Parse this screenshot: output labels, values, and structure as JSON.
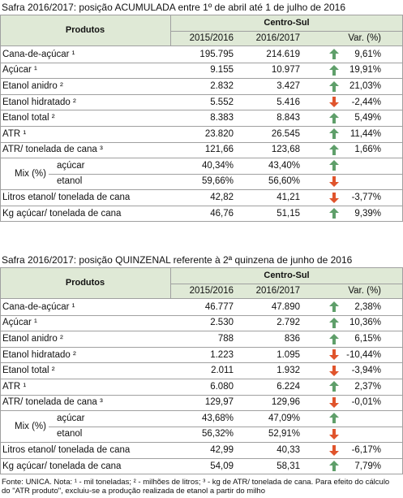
{
  "tables": [
    {
      "title": "Safra 2016/2017: posição ACUMULADA entre 1º de abril até 1 de julho de 2016",
      "header": {
        "product": "Produtos",
        "region": "Centro-Sul",
        "columns": [
          "2015/2016",
          "2016/2017",
          "Var. (%)"
        ]
      },
      "rows": [
        {
          "label": "Cana-de-açúcar ¹",
          "values": [
            "195.795",
            "214.619",
            "9,61%"
          ],
          "trend": "up"
        },
        {
          "label": "Açúcar ¹",
          "values": [
            "9.155",
            "10.977",
            "19,91%"
          ],
          "trend": "up"
        },
        {
          "label": "Etanol anidro ²",
          "values": [
            "2.832",
            "3.427",
            "21,03%"
          ],
          "trend": "up"
        },
        {
          "label": "Etanol hidratado ²",
          "values": [
            "5.552",
            "5.416",
            "-2,44%"
          ],
          "trend": "down"
        },
        {
          "label": "Etanol total ²",
          "values": [
            "8.383",
            "8.843",
            "5,49%"
          ],
          "trend": "up"
        },
        {
          "label": "ATR ¹",
          "values": [
            "23.820",
            "26.545",
            "11,44%"
          ],
          "trend": "up"
        },
        {
          "label": "ATR/ tonelada de cana ³",
          "values": [
            "121,66",
            "123,68",
            "1,66%"
          ],
          "trend": "up"
        },
        {
          "label": "Mix (%)",
          "sub": [
            {
              "label": "açúcar",
              "values": [
                "40,34%",
                "43,40%"
              ],
              "trend": "up"
            },
            {
              "label": "etanol",
              "values": [
                "59,66%",
                "56,60%"
              ],
              "trend": "down"
            }
          ]
        },
        {
          "label": "Litros etanol/ tonelada de cana",
          "values": [
            "42,82",
            "41,21",
            "-3,77%"
          ],
          "trend": "down"
        },
        {
          "label": "Kg açúcar/ tonelada de cana",
          "values": [
            "46,76",
            "51,15",
            "9,39%"
          ],
          "trend": "up"
        }
      ]
    },
    {
      "title": "Safra 2016/2017: posição QUINZENAL referente à 2ª quinzena de junho de 2016",
      "header": {
        "product": "Produtos",
        "region": "Centro-Sul",
        "columns": [
          "2015/2016",
          "2016/2017",
          "Var. (%)"
        ]
      },
      "rows": [
        {
          "label": "Cana-de-açúcar ¹",
          "values": [
            "46.777",
            "47.890",
            "2,38%"
          ],
          "trend": "up"
        },
        {
          "label": "Açúcar ¹",
          "values": [
            "2.530",
            "2.792",
            "10,36%"
          ],
          "trend": "up"
        },
        {
          "label": "Etanol anidro ²",
          "values": [
            "788",
            "836",
            "6,15%"
          ],
          "trend": "up"
        },
        {
          "label": "Etanol hidratado ²",
          "values": [
            "1.223",
            "1.095",
            "-10,44%"
          ],
          "trend": "down"
        },
        {
          "label": "Etanol total ²",
          "values": [
            "2.011",
            "1.932",
            "-3,94%"
          ],
          "trend": "down"
        },
        {
          "label": "ATR ¹",
          "values": [
            "6.080",
            "6.224",
            "2,37%"
          ],
          "trend": "up"
        },
        {
          "label": "ATR/ tonelada de cana ³",
          "values": [
            "129,97",
            "129,96",
            "-0,01%"
          ],
          "trend": "down"
        },
        {
          "label": "Mix (%)",
          "sub": [
            {
              "label": "açúcar",
              "values": [
                "43,68%",
                "47,09%"
              ],
              "trend": "up"
            },
            {
              "label": "etanol",
              "values": [
                "56,32%",
                "52,91%"
              ],
              "trend": "down"
            }
          ]
        },
        {
          "label": "Litros etanol/ tonelada de cana",
          "values": [
            "42,99",
            "40,33",
            "-6,17%"
          ],
          "trend": "down"
        },
        {
          "label": "Kg açúcar/ tonelada de cana",
          "values": [
            "54,09",
            "58,31",
            "7,79%"
          ],
          "trend": "up"
        }
      ]
    }
  ],
  "footnote": "Fonte: UNICA. Nota: ¹ - mil toneladas; ² - milhões de litros; ³ - kg de ATR/ tonelada de cana. Para efeito do cálculo do \"ATR produto\", excluiu-se a produção realizada de etanol a partir do milho"
}
